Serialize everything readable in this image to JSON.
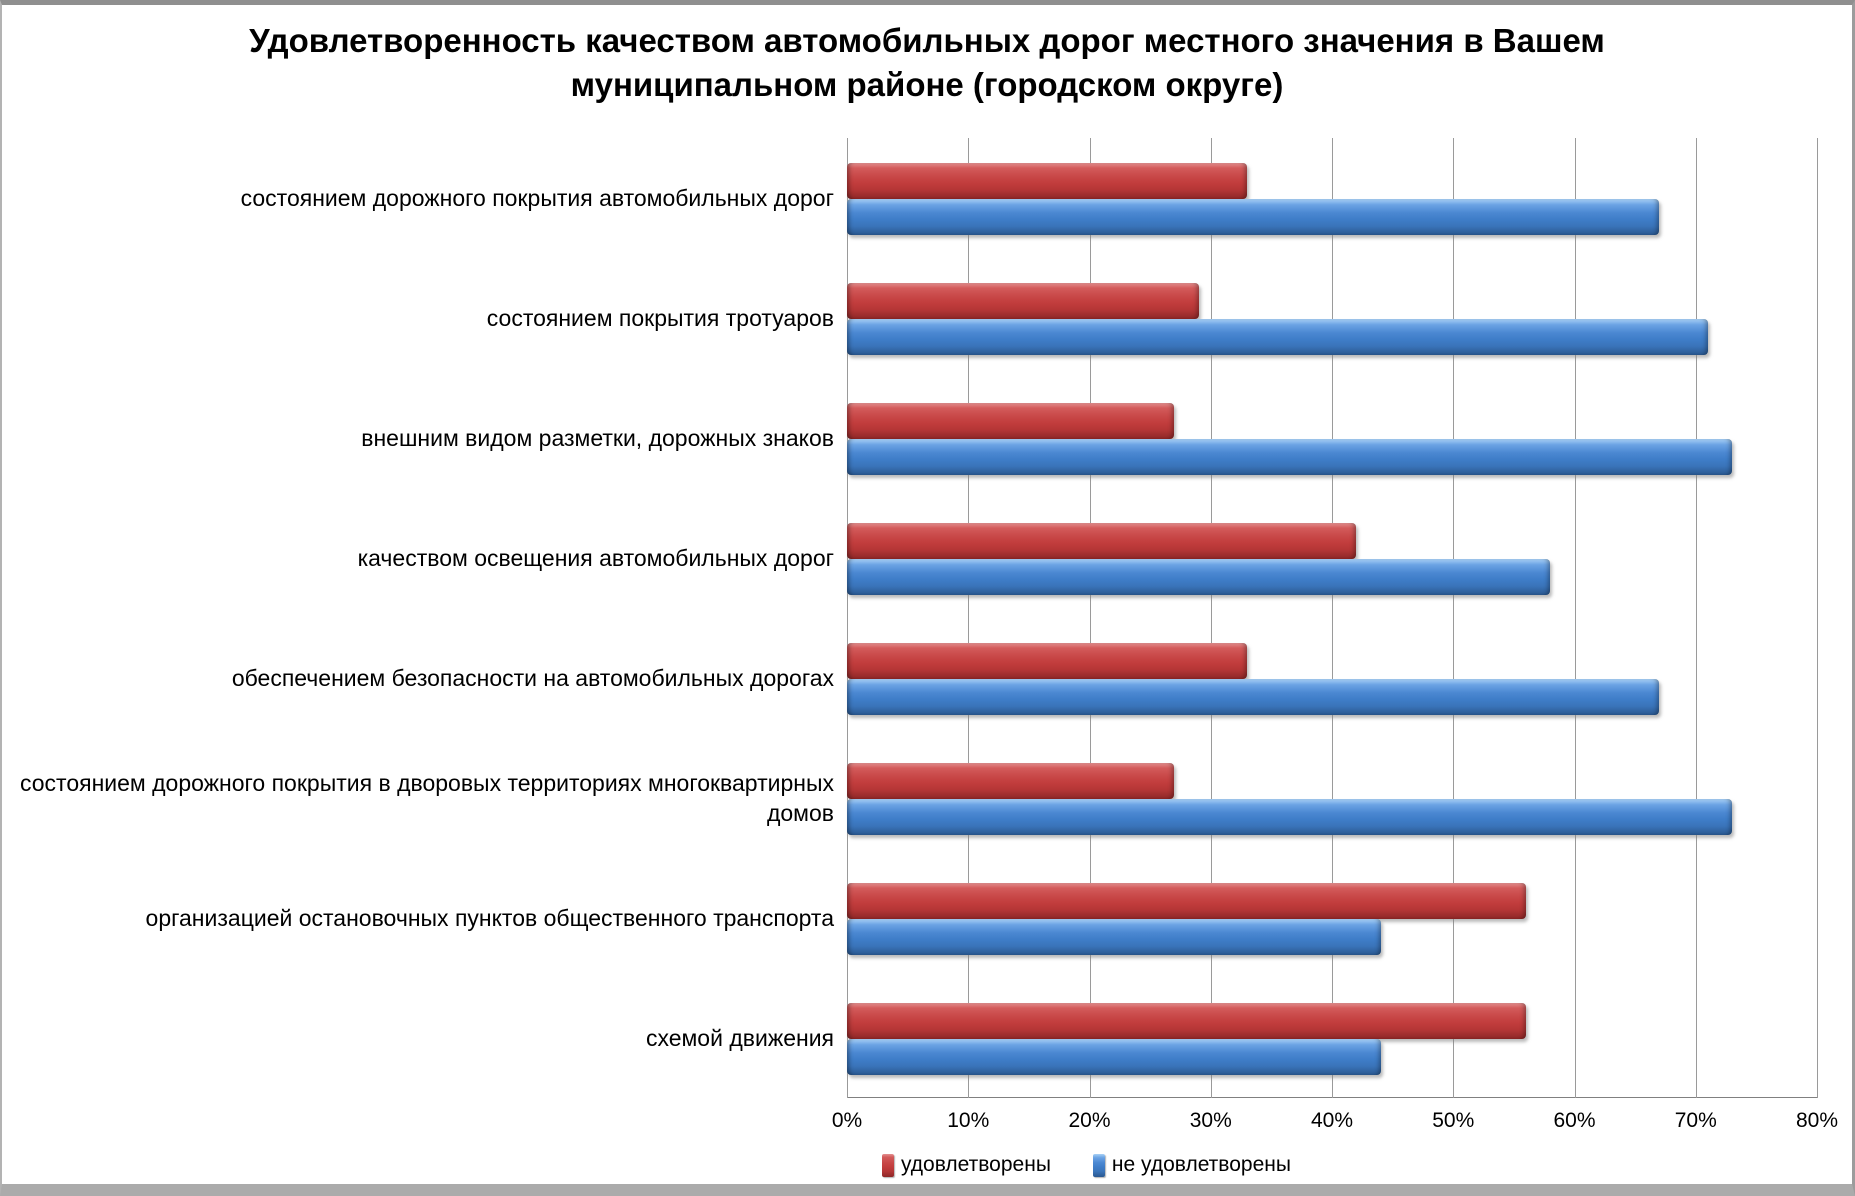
{
  "title_lines": [
    "Удовлетворенность качеством автомобильных дорог местного значения в Вашем",
    "муниципальном районе (городском округе)"
  ],
  "chart_data": {
    "type": "bar",
    "orientation": "horizontal",
    "title": "Удовлетворенность качеством автомобильных дорог местного значения в Вашем муниципальном районе (городском округе)",
    "categories": [
      "состоянием дорожного покрытия автомобильных дорог",
      "состоянием покрытия тротуаров",
      "внешним видом разметки, дорожных знаков",
      "качеством освещения автомобильных дорог",
      "обеспечением безопасности на автомобильных дорогах",
      "состоянием дорожного покрытия в дворовых территориях многоквартирных домов",
      "организацией остановочных пунктов общественного транспорта",
      "схемой движения"
    ],
    "series": [
      {
        "name": "удовлетворены",
        "color": "#C23D3D",
        "values": [
          33,
          29,
          27,
          42,
          33,
          27,
          56,
          56
        ]
      },
      {
        "name": "не удовлетворены",
        "color": "#3F7EC9",
        "values": [
          67,
          71,
          73,
          58,
          67,
          73,
          44,
          44
        ]
      }
    ],
    "xlim": [
      0,
      80
    ],
    "x_ticks": [
      "0%",
      "10%",
      "20%",
      "30%",
      "40%",
      "50%",
      "60%",
      "70%",
      "80%"
    ],
    "grid": true,
    "legend_position": "bottom"
  }
}
